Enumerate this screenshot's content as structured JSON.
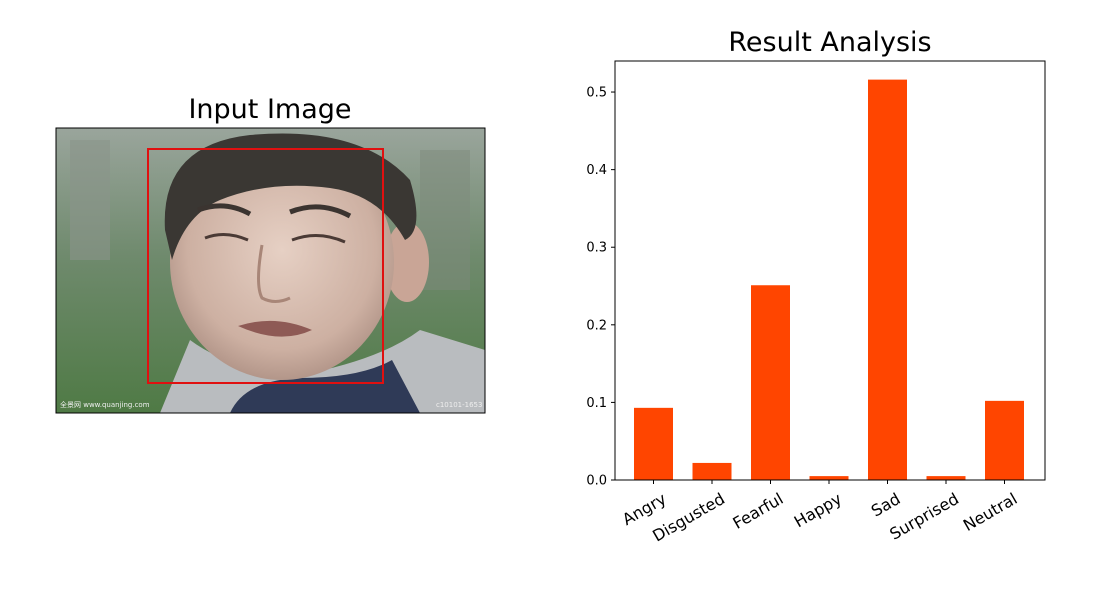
{
  "left_panel": {
    "title": "Input Image",
    "watermark_left": "全景网 www.quanjing.com",
    "watermark_right": "c10101-1653",
    "box_color": "#e01010"
  },
  "chart_data": {
    "type": "bar",
    "title": "Result Analysis",
    "categories": [
      "Angry",
      "Disgusted",
      "Fearful",
      "Happy",
      "Sad",
      "Surprised",
      "Neutral"
    ],
    "values": [
      0.093,
      0.022,
      0.251,
      0.005,
      0.516,
      0.005,
      0.102
    ],
    "yticks": [
      "0.0",
      "0.1",
      "0.2",
      "0.3",
      "0.4",
      "0.5"
    ],
    "ylim": [
      0,
      0.54
    ],
    "bar_color": "#ff4500",
    "xlabel": "",
    "ylabel": "",
    "grid": false
  }
}
